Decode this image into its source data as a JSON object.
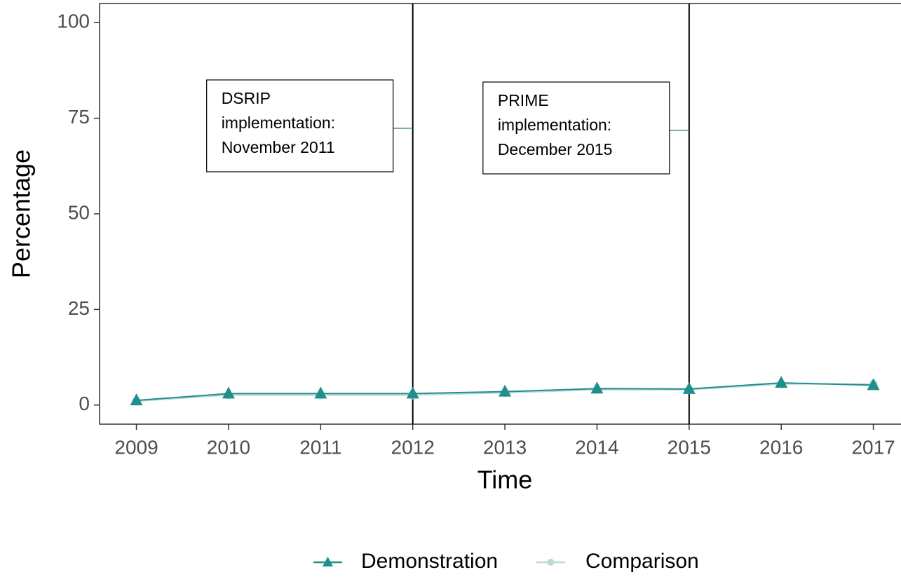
{
  "chart_data": {
    "type": "line",
    "x_label": "Time",
    "y_label": "Percentage",
    "x": [
      2009,
      2010,
      2011,
      2012,
      2013,
      2014,
      2015,
      2016,
      2017
    ],
    "series": [
      {
        "name": "Demonstration",
        "color": "#1f8f8c",
        "marker": "triangle",
        "values": [
          1.2,
          3.0,
          3.0,
          3.0,
          3.5,
          4.3,
          4.2,
          5.8,
          5.2
        ]
      },
      {
        "name": "Comparison",
        "color": "#bcd9d7",
        "marker": "circle",
        "values": [
          1.0,
          2.6,
          2.6,
          2.6,
          3.2,
          4.0,
          4.0,
          5.5,
          5.5
        ]
      }
    ],
    "xlim": [
      2008.6,
      2017.3
    ],
    "ylim": [
      -5,
      105
    ],
    "xticks": [
      2009,
      2010,
      2011,
      2012,
      2013,
      2014,
      2015,
      2016,
      2017
    ],
    "yticks": [
      0,
      25,
      50,
      75,
      100
    ],
    "grid": false,
    "legend_position": "bottom",
    "vlines": [
      2012,
      2015
    ],
    "annotations": [
      {
        "x": 2012,
        "lines": [
          "DSRIP",
          "implementation:",
          "November 2011"
        ]
      },
      {
        "x": 2015,
        "lines": [
          "PRIME",
          "implementation:",
          "December 2015"
        ]
      }
    ]
  }
}
